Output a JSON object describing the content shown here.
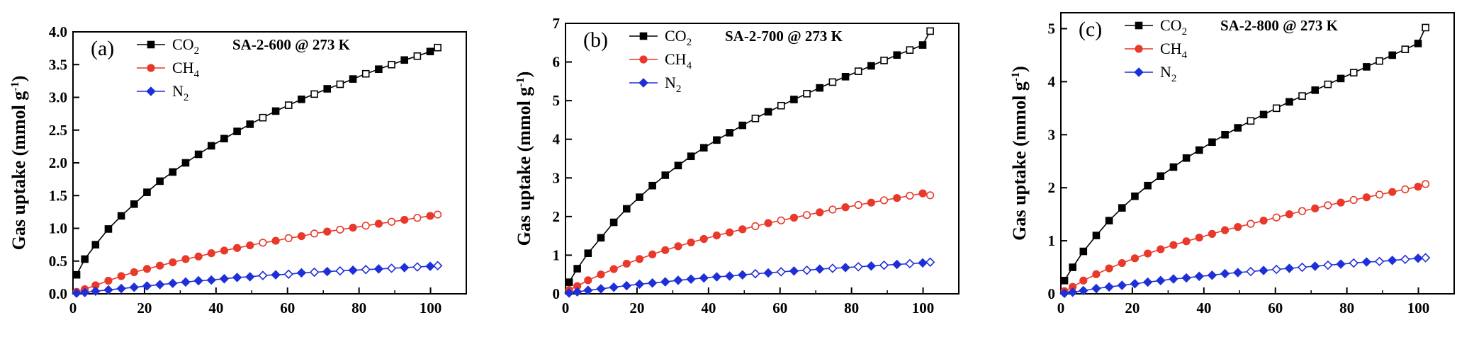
{
  "colors": {
    "co2": "#000000",
    "ch4": "#e8392b",
    "n2": "#1f2fd8"
  },
  "ylabel_main": "Gas uptake",
  "ylabel_unit": "(mmol g",
  "ylabel_sup": "-1",
  "ylabel_close": ")",
  "legend": [
    {
      "base": "CO",
      "sub": "2"
    },
    {
      "base": "CH",
      "sub": "4"
    },
    {
      "base": "N",
      "sub": "2"
    }
  ],
  "chart_data": [
    {
      "type": "line",
      "panel_label": "(a)",
      "sample": "SA-2-600 @ 273 K",
      "xlim": [
        0,
        110
      ],
      "ylim": [
        0,
        4.0
      ],
      "xticks": [
        "0",
        "20",
        "40",
        "60",
        "80",
        "100"
      ],
      "yticks": [
        "0.0",
        "0.5",
        "1.0",
        "1.5",
        "2.0",
        "2.5",
        "3.0",
        "3.5",
        "4.0"
      ],
      "x": [
        1,
        3.3,
        6.3,
        9.9,
        13.5,
        17.1,
        20.7,
        24.3,
        27.9,
        31.5,
        35.1,
        38.7,
        42.3,
        45.9,
        49.5,
        53.1,
        56.7,
        60.3,
        63.9,
        67.5,
        71.1,
        74.7,
        78.3,
        81.9,
        85.5,
        89.1,
        92.7,
        96.3,
        99.9,
        102
      ],
      "series": [
        {
          "name": "CO2",
          "values": [
            0.29,
            0.53,
            0.75,
            0.99,
            1.19,
            1.37,
            1.55,
            1.72,
            1.86,
            2.0,
            2.13,
            2.26,
            2.37,
            2.48,
            2.59,
            2.69,
            2.79,
            2.88,
            2.97,
            3.05,
            3.13,
            3.2,
            3.28,
            3.36,
            3.43,
            3.5,
            3.57,
            3.63,
            3.7,
            3.76
          ]
        },
        {
          "name": "CH4",
          "values": [
            0.03,
            0.07,
            0.13,
            0.2,
            0.27,
            0.33,
            0.38,
            0.43,
            0.48,
            0.53,
            0.57,
            0.62,
            0.66,
            0.7,
            0.74,
            0.78,
            0.81,
            0.85,
            0.88,
            0.92,
            0.95,
            0.98,
            1.01,
            1.04,
            1.07,
            1.1,
            1.13,
            1.16,
            1.19,
            1.21
          ]
        },
        {
          "name": "N2",
          "values": [
            0.01,
            0.02,
            0.04,
            0.06,
            0.08,
            0.1,
            0.12,
            0.14,
            0.16,
            0.18,
            0.2,
            0.21,
            0.23,
            0.25,
            0.26,
            0.28,
            0.29,
            0.3,
            0.32,
            0.33,
            0.34,
            0.35,
            0.36,
            0.37,
            0.38,
            0.39,
            0.4,
            0.41,
            0.42,
            0.43
          ]
        }
      ]
    },
    {
      "type": "line",
      "panel_label": "(b)",
      "sample": "SA-2-700 @ 273 K",
      "xlim": [
        0,
        110
      ],
      "ylim": [
        0,
        7
      ],
      "xticks": [
        "0",
        "20",
        "40",
        "60",
        "80",
        "100"
      ],
      "yticks": [
        "0",
        "1",
        "2",
        "3",
        "4",
        "5",
        "6",
        "7"
      ],
      "x": [
        1,
        3.3,
        6.3,
        9.9,
        13.5,
        17.1,
        20.7,
        24.3,
        27.9,
        31.5,
        35.1,
        38.7,
        42.3,
        45.9,
        49.5,
        53.1,
        56.7,
        60.3,
        63.9,
        67.5,
        71.1,
        74.7,
        78.3,
        81.9,
        85.5,
        89.1,
        92.7,
        96.3,
        99.9,
        102
      ],
      "series": [
        {
          "name": "CO2",
          "values": [
            0.3,
            0.65,
            1.05,
            1.45,
            1.85,
            2.2,
            2.5,
            2.8,
            3.07,
            3.32,
            3.56,
            3.78,
            3.98,
            4.17,
            4.36,
            4.54,
            4.71,
            4.87,
            5.03,
            5.18,
            5.33,
            5.48,
            5.62,
            5.76,
            5.9,
            6.04,
            6.18,
            6.31,
            6.44,
            6.8
          ]
        },
        {
          "name": "CH4",
          "values": [
            0.1,
            0.2,
            0.35,
            0.5,
            0.64,
            0.78,
            0.9,
            1.02,
            1.13,
            1.23,
            1.33,
            1.42,
            1.51,
            1.59,
            1.67,
            1.75,
            1.83,
            1.9,
            1.97,
            2.04,
            2.11,
            2.18,
            2.24,
            2.3,
            2.36,
            2.42,
            2.48,
            2.54,
            2.6,
            2.55
          ]
        },
        {
          "name": "N2",
          "values": [
            0.02,
            0.05,
            0.09,
            0.13,
            0.17,
            0.21,
            0.25,
            0.28,
            0.31,
            0.35,
            0.38,
            0.41,
            0.44,
            0.46,
            0.49,
            0.52,
            0.54,
            0.57,
            0.59,
            0.61,
            0.64,
            0.66,
            0.68,
            0.7,
            0.72,
            0.74,
            0.76,
            0.78,
            0.8,
            0.82
          ]
        }
      ]
    },
    {
      "type": "line",
      "panel_label": "(c)",
      "sample": "SA-2-800 @ 273 K",
      "xlim": [
        0,
        110
      ],
      "ylim": [
        0,
        5.3
      ],
      "xticks": [
        "0",
        "20",
        "40",
        "60",
        "80",
        "100"
      ],
      "yticks": [
        "0",
        "1",
        "2",
        "3",
        "4",
        "5"
      ],
      "x": [
        1,
        3.3,
        6.3,
        9.9,
        13.5,
        17.1,
        20.7,
        24.3,
        27.9,
        31.5,
        35.1,
        38.7,
        42.3,
        45.9,
        49.5,
        53.1,
        56.7,
        60.3,
        63.9,
        67.5,
        71.1,
        74.7,
        78.3,
        81.9,
        85.5,
        89.1,
        92.7,
        96.3,
        99.9,
        102
      ],
      "series": [
        {
          "name": "CO2",
          "values": [
            0.25,
            0.5,
            0.8,
            1.1,
            1.38,
            1.62,
            1.84,
            2.04,
            2.22,
            2.39,
            2.56,
            2.71,
            2.86,
            3.0,
            3.13,
            3.26,
            3.38,
            3.5,
            3.62,
            3.73,
            3.84,
            3.95,
            4.06,
            4.17,
            4.28,
            4.39,
            4.5,
            4.61,
            4.72,
            5.02
          ]
        },
        {
          "name": "CH4",
          "values": [
            0.05,
            0.13,
            0.25,
            0.37,
            0.48,
            0.58,
            0.67,
            0.76,
            0.84,
            0.92,
            0.99,
            1.06,
            1.13,
            1.2,
            1.26,
            1.32,
            1.38,
            1.44,
            1.5,
            1.56,
            1.61,
            1.67,
            1.72,
            1.77,
            1.82,
            1.87,
            1.92,
            1.97,
            2.02,
            2.07
          ]
        },
        {
          "name": "N2",
          "values": [
            0.01,
            0.03,
            0.06,
            0.1,
            0.13,
            0.16,
            0.19,
            0.22,
            0.25,
            0.28,
            0.3,
            0.33,
            0.35,
            0.38,
            0.4,
            0.42,
            0.44,
            0.46,
            0.48,
            0.5,
            0.52,
            0.54,
            0.56,
            0.58,
            0.6,
            0.61,
            0.63,
            0.65,
            0.67,
            0.68
          ]
        }
      ]
    }
  ]
}
